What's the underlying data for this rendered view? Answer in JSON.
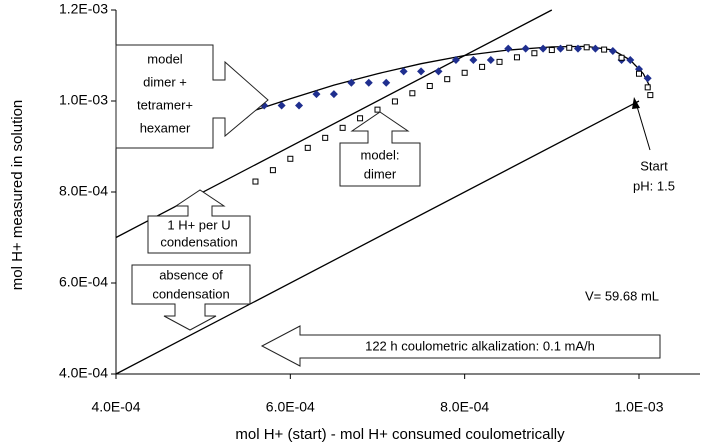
{
  "chart_data": {
    "type": "scatter",
    "x_label": "mol H+ (start) - mol H+ consumed coulometrically",
    "y_label": "mol H+  measured in solution",
    "xlim": [
      0.0004,
      0.00107
    ],
    "ylim": [
      0.0004,
      0.0012
    ],
    "xticks": [
      {
        "value": 0.0004,
        "label": "4.0E-04"
      },
      {
        "value": 0.0006,
        "label": "6.0E-04"
      },
      {
        "value": 0.0008,
        "label": "8.0E-04"
      },
      {
        "value": 0.001,
        "label": "1.0E-03"
      }
    ],
    "yticks": [
      {
        "value": 0.0004,
        "label": "4.0E-04"
      },
      {
        "value": 0.0006,
        "label": "6.0E-04"
      },
      {
        "value": 0.0008,
        "label": "8.0E-04"
      },
      {
        "value": 0.001,
        "label": "1.0E-03"
      },
      {
        "value": 0.0012,
        "label": "1.2E-03"
      }
    ],
    "series": [
      {
        "mode": "line",
        "color": "#000000",
        "x": [
          0.0004,
          0.001
        ],
        "values": [
          0.0004,
          0.001
        ]
      },
      {
        "mode": "line",
        "color": "#000000",
        "x": [
          0.0004,
          0.0009
        ],
        "values": [
          0.0007,
          0.0012
        ]
      },
      {
        "mode": "line",
        "color": "#000000",
        "x": [
          0.00053,
          0.00056,
          0.0006,
          0.00065,
          0.0007,
          0.00075,
          0.0008,
          0.00085,
          0.0009,
          0.00094,
          0.00097,
          0.00099,
          0.001005,
          0.001013
        ],
        "values": [
          0.000962,
          0.00098,
          0.001005,
          0.001035,
          0.00106,
          0.001082,
          0.0011,
          0.001112,
          0.001119,
          0.00112,
          0.001112,
          0.00109,
          0.00106,
          0.00103
        ]
      },
      {
        "mode": "marker",
        "marker": "diamond",
        "color": "#1f2f8f",
        "x": [
          0.00053,
          0.00055,
          0.00057,
          0.00059,
          0.00061,
          0.00063,
          0.00065,
          0.00067,
          0.00069,
          0.00071,
          0.00073,
          0.00075,
          0.00077,
          0.00079,
          0.00081,
          0.00083,
          0.00085,
          0.00087,
          0.00089,
          0.00091,
          0.00093,
          0.00095,
          0.00097,
          0.00098,
          0.00099,
          0.001,
          0.00101
        ],
        "values": [
          0.000963,
          0.00097,
          0.00099,
          0.00099,
          0.00099,
          0.001015,
          0.001015,
          0.00104,
          0.00104,
          0.00104,
          0.001065,
          0.001065,
          0.001065,
          0.00109,
          0.00109,
          0.00109,
          0.001115,
          0.001115,
          0.001115,
          0.001115,
          0.001115,
          0.001115,
          0.00111,
          0.00109,
          0.00109,
          0.00107,
          0.00105
        ]
      },
      {
        "mode": "marker",
        "marker": "square",
        "color": "#ffffff",
        "x": [
          0.00056,
          0.00058,
          0.0006,
          0.00062,
          0.00064,
          0.00066,
          0.00068,
          0.0007,
          0.00072,
          0.00074,
          0.00076,
          0.00078,
          0.0008,
          0.00082,
          0.00084,
          0.00086,
          0.00088,
          0.0009,
          0.00092,
          0.00094,
          0.00096,
          0.00098,
          0.001,
          0.00101,
          0.001013
        ],
        "values": [
          0.000823,
          0.000848,
          0.000873,
          0.000897,
          0.000919,
          0.000941,
          0.000962,
          0.000981,
          0.000999,
          0.001017,
          0.001033,
          0.001048,
          0.001062,
          0.001075,
          0.001086,
          0.001096,
          0.001105,
          0.001112,
          0.001117,
          0.001118,
          0.001113,
          0.001095,
          0.00106,
          0.00103,
          0.001013
        ]
      }
    ],
    "annotations": [
      {
        "lines": [
          "model",
          "dimer +",
          "tetramer+",
          "hexamer"
        ]
      },
      {
        "lines": [
          "model:",
          "dimer"
        ]
      },
      {
        "lines": [
          "1 H+ per U",
          "condensation"
        ]
      },
      {
        "lines": [
          "absence of",
          "condensation"
        ]
      },
      {
        "lines": [
          "Start",
          "pH: 1.5"
        ]
      },
      {
        "lines": [
          "V= 59.68 mL"
        ]
      },
      {
        "lines": [
          "122 h coulometric alkalization: 0.1 mA/h"
        ]
      }
    ]
  }
}
